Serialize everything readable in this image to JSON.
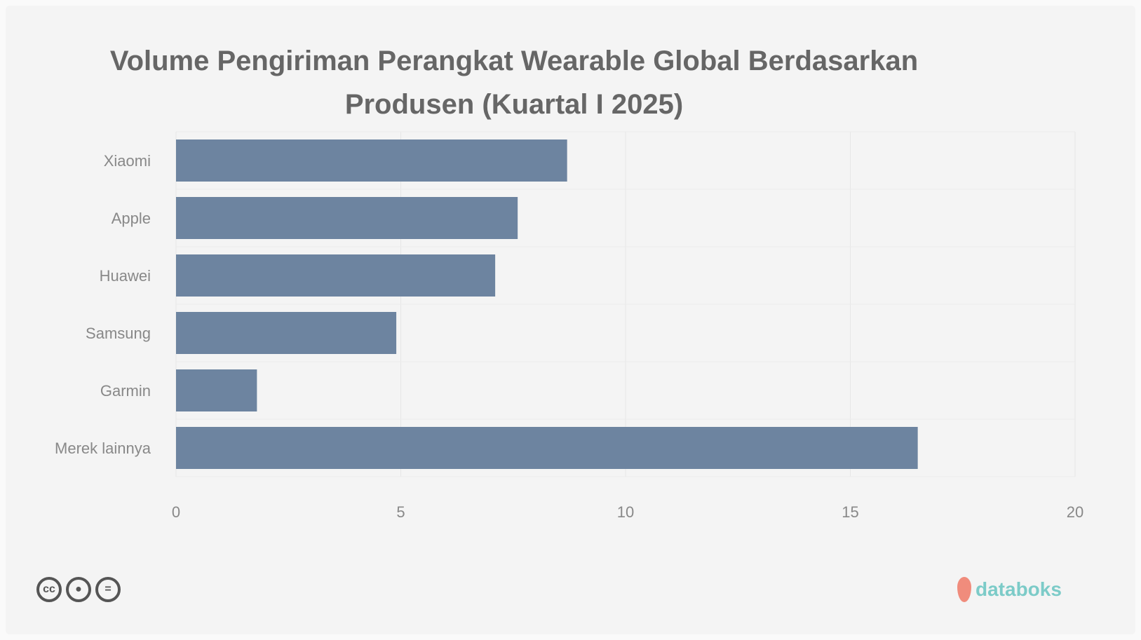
{
  "chart_data": {
    "type": "bar",
    "orientation": "horizontal",
    "title": "Volume Pengiriman Perangkat Wearable Global Berdasarkan Produsen (Kuartal I 2025)",
    "categories": [
      "Xiaomi",
      "Apple",
      "Huawei",
      "Samsung",
      "Garmin",
      "Merek lainnya"
    ],
    "values": [
      8.7,
      7.6,
      7.1,
      4.9,
      1.8,
      16.5
    ],
    "xlim": [
      0,
      20
    ],
    "xticks": [
      "0",
      "5",
      "10",
      "15",
      "20"
    ],
    "xlabel": "",
    "ylabel": "",
    "grid": true,
    "bar_color": "#6d84a0"
  },
  "footer": {
    "license_icons": [
      "cc-icon",
      "by-icon",
      "equal-icon"
    ],
    "logo": "databoks"
  }
}
